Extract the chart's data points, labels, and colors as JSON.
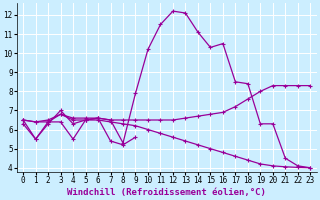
{
  "xlabel": "Windchill (Refroidissement éolien,°C)",
  "background_color": "#cceeff",
  "grid_color": "#ffffff",
  "line_color": "#990099",
  "xlim": [
    -0.5,
    23.5
  ],
  "ylim": [
    3.8,
    12.6
  ],
  "xticks": [
    0,
    1,
    2,
    3,
    4,
    5,
    6,
    7,
    8,
    9,
    10,
    11,
    12,
    13,
    14,
    15,
    16,
    17,
    18,
    19,
    20,
    21,
    22,
    23
  ],
  "yticks": [
    4,
    5,
    6,
    7,
    8,
    9,
    10,
    11,
    12
  ],
  "marker": "+",
  "markersize": 3,
  "linewidth": 0.9,
  "xlabel_fontsize": 6.5,
  "tick_fontsize": 5.5,
  "font_family": "monospace",
  "series": {
    "main": {
      "x": [
        0,
        1,
        2,
        3,
        4,
        5,
        6,
        7,
        8,
        9,
        10,
        11,
        12,
        13,
        14,
        15,
        16,
        17,
        18,
        19,
        20,
        21,
        22,
        23
      ],
      "y": [
        6.5,
        5.5,
        6.4,
        6.4,
        5.5,
        6.5,
        6.6,
        6.5,
        5.3,
        7.9,
        10.2,
        11.5,
        12.2,
        12.1,
        11.1,
        10.3,
        10.5,
        8.5,
        8.4,
        6.3,
        6.3,
        4.5,
        4.1,
        4.0
      ]
    },
    "flat": {
      "x": [
        0,
        1,
        2,
        3,
        4,
        5,
        6,
        7,
        8,
        9,
        10,
        11,
        12,
        13,
        14,
        15,
        16,
        17,
        18,
        19,
        20,
        21,
        22,
        23
      ],
      "y": [
        6.5,
        6.4,
        6.5,
        6.8,
        6.6,
        6.6,
        6.6,
        6.5,
        6.5,
        6.5,
        6.5,
        6.5,
        6.5,
        6.6,
        6.7,
        6.8,
        6.9,
        7.2,
        7.6,
        8.0,
        8.3,
        8.3,
        8.3,
        8.3
      ]
    },
    "decrease": {
      "x": [
        0,
        1,
        2,
        3,
        4,
        5,
        6,
        7,
        8,
        9,
        10,
        11,
        12,
        13,
        14,
        15,
        16,
        17,
        18,
        19,
        20,
        21,
        22,
        23
      ],
      "y": [
        6.5,
        6.4,
        6.4,
        6.8,
        6.5,
        6.5,
        6.5,
        6.4,
        6.3,
        6.2,
        6.0,
        5.8,
        5.6,
        5.4,
        5.2,
        5.0,
        4.8,
        4.6,
        4.4,
        4.2,
        4.1,
        4.05,
        4.02,
        4.0
      ]
    },
    "fluct": {
      "x": [
        0,
        1,
        2,
        3,
        4,
        5,
        6,
        7,
        8,
        9
      ],
      "y": [
        6.3,
        5.5,
        6.3,
        7.0,
        6.3,
        6.5,
        6.6,
        5.4,
        5.2,
        5.6
      ]
    }
  }
}
